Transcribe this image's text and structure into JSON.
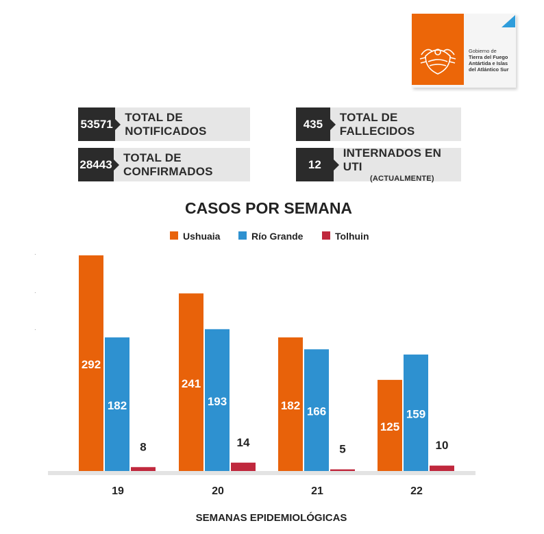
{
  "logo": {
    "text_lines": [
      "Gobierno de",
      "Tierra del Fuego",
      "Antártida e Islas",
      "del Atlántico Sur"
    ],
    "icon": "provincial-coat-of-arms-icon",
    "brand_color": "#ec6608",
    "accent_color": "#2f9ddb"
  },
  "stats": {
    "notificados": {
      "value": "53571",
      "label": "TOTAL DE NOTIFICADOS"
    },
    "confirmados": {
      "value": "28443",
      "label": "TOTAL DE CONFIRMADOS"
    },
    "fallecidos": {
      "value": "435",
      "label": "TOTAL DE FALLECIDOS"
    },
    "uti": {
      "value": "12",
      "label": "INTERNADOS EN UTI",
      "sublabel": "(ACTUALMENTE)"
    }
  },
  "chart_data": {
    "type": "bar",
    "title": "CASOS POR SEMANA",
    "xlabel": "SEMANAS EPIDEMIOLÓGICAS",
    "ylabel": "",
    "categories": [
      "19",
      "20",
      "21",
      "22"
    ],
    "series": [
      {
        "name": "Ushuaia",
        "color": "#e8620a",
        "values": [
          292,
          241,
          182,
          125
        ]
      },
      {
        "name": "Río Grande",
        "color": "#2e91d0",
        "values": [
          182,
          193,
          166,
          159
        ]
      },
      {
        "name": "Tolhuin",
        "color": "#c0283d",
        "values": [
          8,
          14,
          5,
          10
        ]
      }
    ],
    "ylim": [
      0,
      320
    ],
    "grid": false,
    "legend_position": "top-center"
  }
}
